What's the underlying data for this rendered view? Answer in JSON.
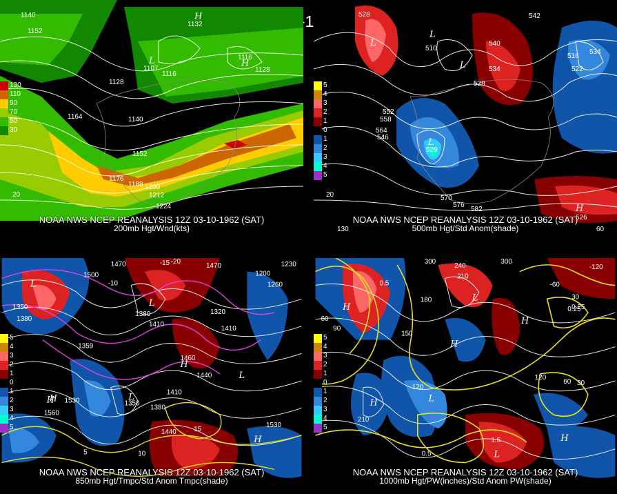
{
  "title": "12Z 03-10-1962 (SAT)",
  "panels": [
    {
      "id": "p1",
      "source": "NOAA NWS NCEP REANALYSIS 12Z 03-10-1962 (SAT)",
      "field": "200mb Hgt/Wnd(kts)",
      "legend": [
        {
          "color": "#cc0000",
          "label": "130"
        },
        {
          "color": "#cc6600",
          "label": "110"
        },
        {
          "color": "#ffcc00",
          "label": "90"
        },
        {
          "color": "#99cc00",
          "label": "70"
        },
        {
          "color": "#33bb00",
          "label": "50"
        },
        {
          "color": "#118800",
          "label": "30"
        }
      ],
      "contour_labels": [
        "1140",
        "1152",
        "1132",
        "1107",
        "1116",
        "1116",
        "1128",
        "1128",
        "1164",
        "1140",
        "1152",
        "1176",
        "1188",
        "1200",
        "1212",
        "1224",
        "20"
      ],
      "centers": [
        "H",
        "L",
        "H"
      ]
    },
    {
      "id": "p2",
      "source": "NOAA NWS NCEP REANALYSIS 12Z 03-10-1962 (SAT)",
      "field": "500mb Hgt/Std Anom(shade)",
      "legend": [
        {
          "color": "#ffff00",
          "label": "5"
        },
        {
          "color": "#cc8800",
          "label": "4"
        },
        {
          "color": "#ff6666",
          "label": "3"
        },
        {
          "color": "#dd2222",
          "label": "2"
        },
        {
          "color": "#880000",
          "label": "1"
        },
        {
          "color": "#000000",
          "label": "0"
        },
        {
          "color": "#1155aa",
          "label": "1"
        },
        {
          "color": "#3388dd",
          "label": "2"
        },
        {
          "color": "#33ccff",
          "label": "3"
        },
        {
          "color": "#00ffcc",
          "label": "4"
        },
        {
          "color": "#9933cc",
          "label": "5"
        }
      ],
      "contour_labels": [
        "528",
        "510",
        "540",
        "534",
        "528",
        "516",
        "534",
        "522",
        "552",
        "558",
        "564",
        "546",
        "529",
        "570",
        "576",
        "582",
        "20",
        "130",
        "60",
        "542",
        "526"
      ],
      "centers": [
        "L",
        "L",
        "L",
        "L",
        "H"
      ]
    },
    {
      "id": "p3",
      "source": "NOAA NWS NCEP REANALYSIS 12Z 03-10-1962 (SAT)",
      "field": "850mb Hgt/Tmpc/Std Anom Tmpc(shade)",
      "legend": [
        {
          "color": "#ffff00",
          "label": "5"
        },
        {
          "color": "#cc8800",
          "label": "4"
        },
        {
          "color": "#ff6666",
          "label": "3"
        },
        {
          "color": "#dd2222",
          "label": "2"
        },
        {
          "color": "#880000",
          "label": "1"
        },
        {
          "color": "#000000",
          "label": "0"
        },
        {
          "color": "#1155aa",
          "label": "1"
        },
        {
          "color": "#3388dd",
          "label": "2"
        },
        {
          "color": "#33ccff",
          "label": "3"
        },
        {
          "color": "#00ffcc",
          "label": "4"
        },
        {
          "color": "#9933cc",
          "label": "5"
        }
      ],
      "contour_labels": [
        "1470",
        "1500",
        "1350",
        "1380",
        "1410",
        "1380",
        "1200",
        "1260",
        "1230",
        "1320",
        "1410",
        "1440",
        "1410",
        "1530",
        "1560",
        "1350",
        "1380",
        "1440",
        "1530",
        "1359",
        "1460",
        "1470",
        "15",
        "10",
        "5",
        "-20",
        "-10",
        "-15"
      ],
      "centers": [
        "L",
        "L",
        "H",
        "L",
        "H",
        "H",
        "L",
        "H"
      ]
    },
    {
      "id": "p4",
      "source": "NOAA NWS NCEP REANALYSIS 12Z 03-10-1962 (SAT)",
      "field": "1000mb Hgt/PW(inches)/Std Anom PW(shade)",
      "legend": [
        {
          "color": "#ffff00",
          "label": "5"
        },
        {
          "color": "#cc8800",
          "label": "4"
        },
        {
          "color": "#ff6666",
          "label": "3"
        },
        {
          "color": "#dd2222",
          "label": "2"
        },
        {
          "color": "#880000",
          "label": "1"
        },
        {
          "color": "#000000",
          "label": "0"
        },
        {
          "color": "#1155aa",
          "label": "1"
        },
        {
          "color": "#3388dd",
          "label": "2"
        },
        {
          "color": "#33ccff",
          "label": "3"
        },
        {
          "color": "#00ffcc",
          "label": "4"
        },
        {
          "color": "#9933cc",
          "label": "5"
        }
      ],
      "contour_labels": [
        "300",
        "240",
        "210",
        "180",
        "150",
        "120",
        "90",
        "60",
        "30",
        "0.25",
        "0.5",
        "1.5",
        "0.25",
        "0.5",
        "210",
        "120",
        "60",
        "30",
        "300",
        "-120",
        "-60"
      ],
      "centers": [
        "H",
        "L",
        "H",
        "H",
        "L",
        "H",
        "L",
        "H"
      ]
    }
  ]
}
